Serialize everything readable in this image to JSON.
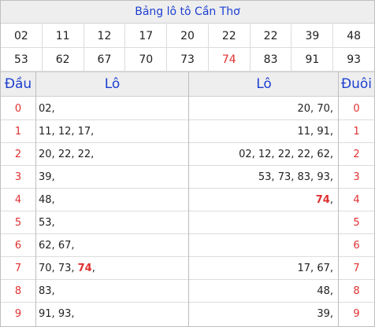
{
  "title": "Bảng lô tô Cần Thơ",
  "numbers_row1": [
    "02",
    "11",
    "12",
    "17",
    "20",
    "22",
    "22",
    "39",
    "48"
  ],
  "numbers_row2": [
    "53",
    "62",
    "67",
    "70",
    "73",
    "74",
    "83",
    "91",
    "93"
  ],
  "highlight_number": "74",
  "headers": {
    "dau": "Đầu",
    "lo_left": "Lô",
    "lo_right": "Lô",
    "duoi": "Đuôi"
  },
  "rows": [
    {
      "digit": "0",
      "left": "02,",
      "right": "20, 70,"
    },
    {
      "digit": "1",
      "left": "11, 12, 17,",
      "right": "11, 91,"
    },
    {
      "digit": "2",
      "left": "20, 22, 22,",
      "right": "02, 12, 22, 22, 62,"
    },
    {
      "digit": "3",
      "left": "39,",
      "right": "53, 73, 83, 93,"
    },
    {
      "digit": "4",
      "left": "48,",
      "right": "74,"
    },
    {
      "digit": "5",
      "left": "53,",
      "right": ""
    },
    {
      "digit": "6",
      "left": "62, 67,",
      "right": ""
    },
    {
      "digit": "7",
      "left": "70, 73, 74,",
      "right": "17, 67,"
    },
    {
      "digit": "8",
      "left": "83,",
      "right": "48,"
    },
    {
      "digit": "9",
      "left": "91, 93,",
      "right": "39,"
    }
  ],
  "colors": {
    "accent": "#1c3fd0",
    "highlight": "#e03030",
    "header_bg": "#eeeeee"
  }
}
